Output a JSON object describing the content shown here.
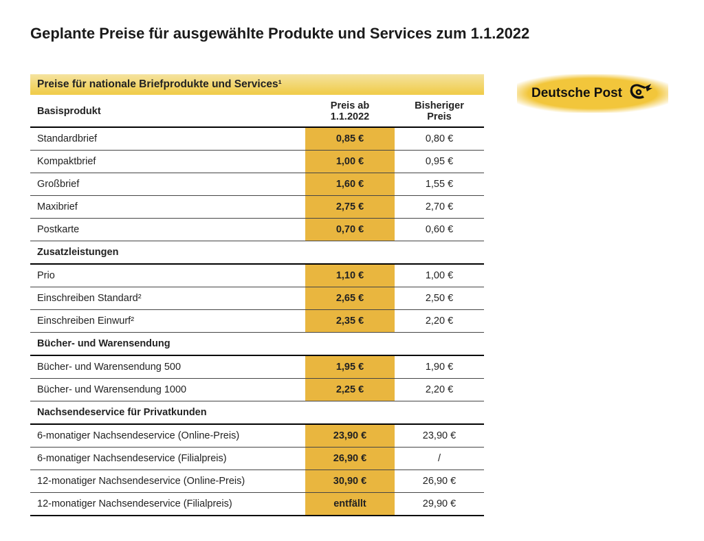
{
  "title": "Geplante Preise für ausgewählte Produkte und Services zum 1.1.2022",
  "brand": {
    "name": "Deutsche Post",
    "accent": "#f2c63b",
    "text_color": "#111111"
  },
  "table": {
    "banner": "Preise für nationale Briefprodukte und Services¹",
    "columns": [
      "Basisprodukt",
      "Preis ab 1.1.2022",
      "Bisheriger Preis"
    ],
    "banner_bg_top": "#f5e3a0",
    "banner_bg_bottom": "#f0cd4e",
    "highlight_bg": "#e9b63f",
    "groups": [
      {
        "header": null,
        "rows": [
          {
            "label": "Standardbrief",
            "new": "0,85 €",
            "old": "0,80 €"
          },
          {
            "label": "Kompaktbrief",
            "new": "1,00 €",
            "old": "0,95 €"
          },
          {
            "label": "Großbrief",
            "new": "1,60 €",
            "old": "1,55 €"
          },
          {
            "label": "Maxibrief",
            "new": "2,75 €",
            "old": "2,70 €"
          },
          {
            "label": "Postkarte",
            "new": "0,70 €",
            "old": "0,60 €"
          }
        ]
      },
      {
        "header": "Zusatzleistungen",
        "rows": [
          {
            "label": "Prio",
            "new": "1,10 €",
            "old": "1,00 €"
          },
          {
            "label": "Einschreiben Standard²",
            "new": "2,65 €",
            "old": "2,50 €"
          },
          {
            "label": "Einschreiben Einwurf²",
            "new": "2,35 €",
            "old": "2,20 €"
          }
        ]
      },
      {
        "header": "Bücher- und Warensendung",
        "rows": [
          {
            "label": "Bücher- und Warensendung 500",
            "new": "1,95 €",
            "old": "1,90 €"
          },
          {
            "label": "Bücher- und Warensendung 1000",
            "new": "2,25 €",
            "old": "2,20 €"
          }
        ]
      },
      {
        "header": "Nachsendeservice für Privatkunden",
        "rows": [
          {
            "label": "6-monatiger Nachsendeservice (Online-Preis)",
            "new": "23,90 €",
            "old": "23,90 €"
          },
          {
            "label": "6-monatiger Nachsendeservice (Filialpreis)",
            "new": "26,90 €",
            "old": "/"
          },
          {
            "label": "12-monatiger Nachsendeservice (Online-Preis)",
            "new": "30,90 €",
            "old": "26,90 €"
          },
          {
            "label": "12-monatiger Nachsendeservice (Filialpreis)",
            "new": "entfällt",
            "old": "29,90 €"
          }
        ]
      }
    ]
  }
}
